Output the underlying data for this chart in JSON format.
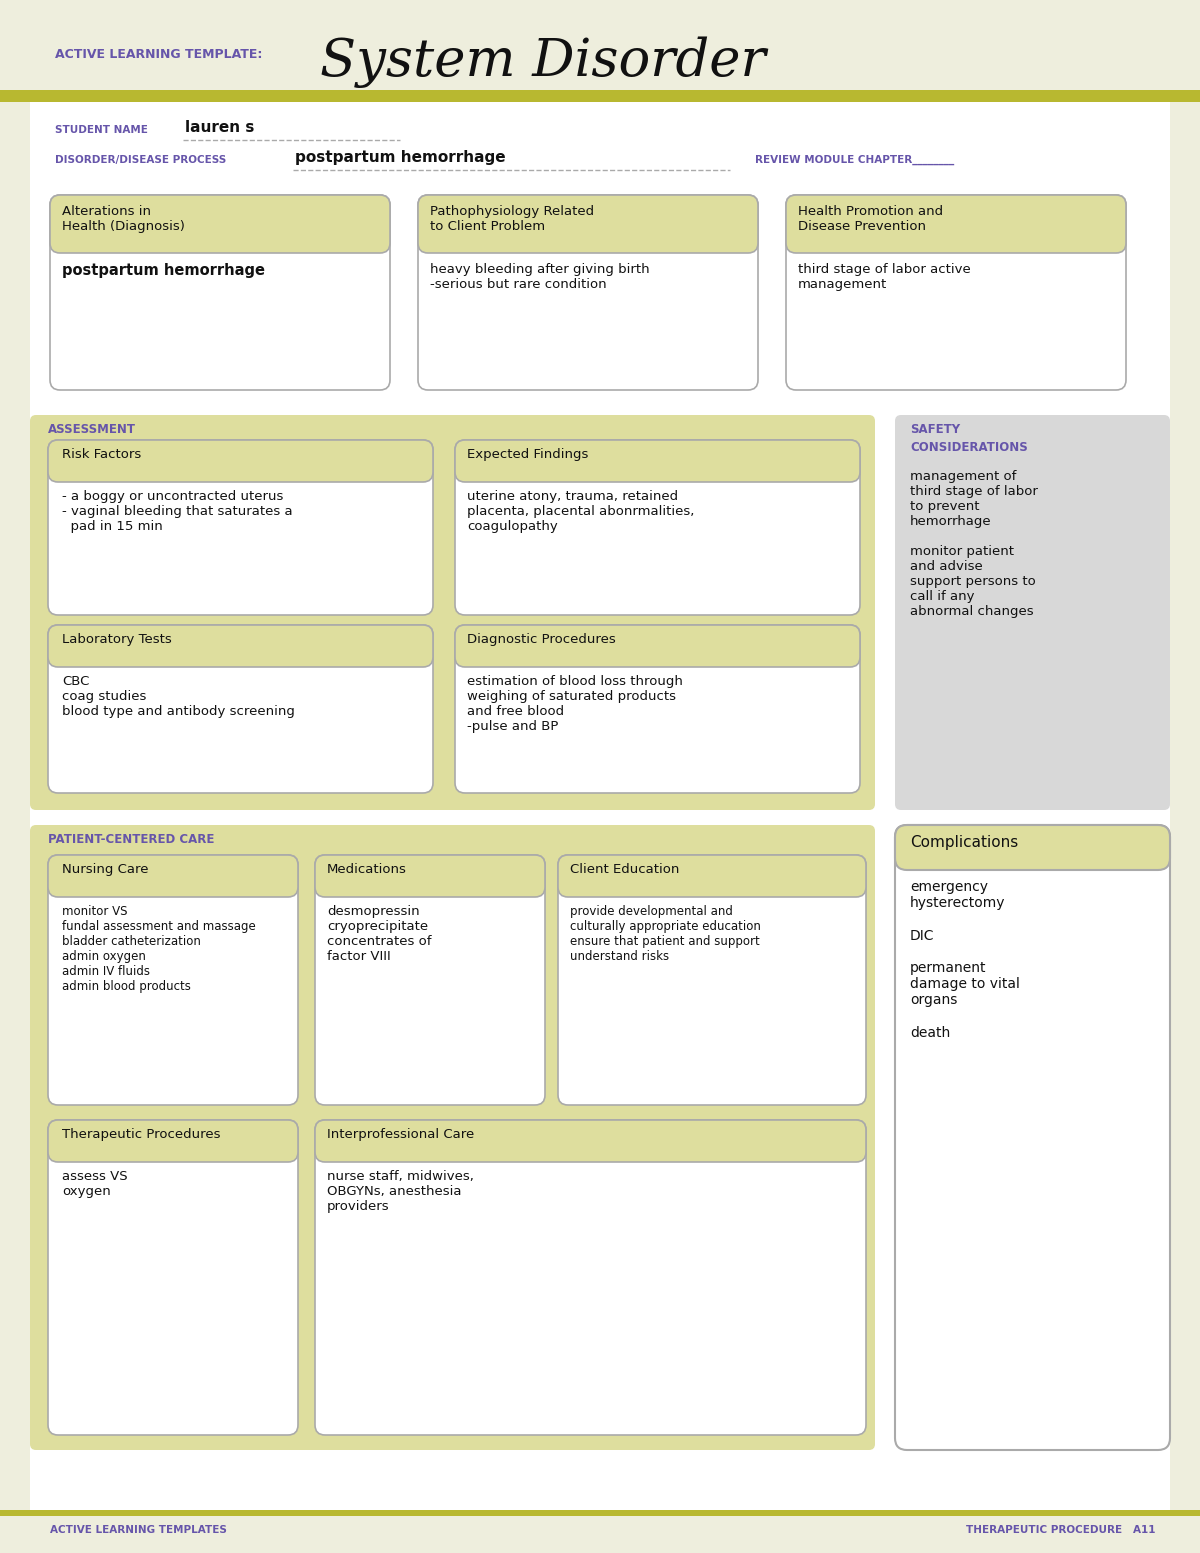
{
  "bg_color": "#eeeedd",
  "white": "#ffffff",
  "header_bg": "#dede9e",
  "section_bg": "#dede9e",
  "safety_bg": "#d8d8d8",
  "border_color": "#aaaaaa",
  "purple_color": "#6655aa",
  "olive_bar": "#b8b830",
  "title_large": "System Disorder",
  "title_small": "ACTIVE LEARNING TEMPLATE:",
  "student_name": "lauren s",
  "disorder": "postpartum hemorrhage",
  "box1_title": "Alterations in\nHealth (Diagnosis)",
  "box1_content": "postpartum hemorrhage",
  "box2_title": "Pathophysiology Related\nto Client Problem",
  "box2_content": "heavy bleeding after giving birth\n-serious but rare condition",
  "box3_title": "Health Promotion and\nDisease Prevention",
  "box3_content": "third stage of labor active\nmanagement",
  "assessment_label": "ASSESSMENT",
  "safety_title1": "SAFETY",
  "safety_title2": "CONSIDERATIONS",
  "risk_title": "Risk Factors",
  "risk_content": "- a boggy or uncontracted uterus\n- vaginal bleeding that saturates a\n  pad in 15 min",
  "expected_title": "Expected Findings",
  "expected_content": "uterine atony, trauma, retained\nplacenta, placental abonrmalities,\ncoagulopathy",
  "safety_content": "management of\nthird stage of labor\nto prevent\nhemorrhage\n\nmonitor patient\nand advise\nsupport persons to\ncall if any\nabnormal changes",
  "lab_title": "Laboratory Tests",
  "lab_content": "CBC\ncoag studies\nblood type and antibody screening",
  "diag_title": "Diagnostic Procedures",
  "diag_content": "estimation of blood loss through\nweighing of saturated products\nand free blood\n-pulse and BP",
  "patient_care_label": "PATIENT-CENTERED CARE",
  "complications_label": "Complications",
  "complications_content": "emergency\nhysterectomy\n\nDIC\n\npermanent\ndamage to vital\norgans\n\ndeath",
  "nursing_title": "Nursing Care",
  "nursing_content": "monitor VS\nfundal assessment and massage\nbladder catheterization\nadmin oxygen\nadmin IV fluids\nadmin blood products",
  "meds_title": "Medications",
  "meds_content": "desmopressin\ncryoprecipitate\nconcentrates of\nfactor VIII",
  "client_ed_title": "Client Education",
  "client_ed_content": "provide developmental and\nculturally appropriate education\nensure that patient and support\nunderstand risks",
  "therapy_title": "Therapeutic Procedures",
  "therapy_content": "assess VS\noxygen",
  "interpro_title": "Interprofessional Care",
  "interpro_content": "nurse staff, midwives,\nOBGYNs, anesthesia\nproviders",
  "footer_left": "ACTIVE LEARNING TEMPLATES",
  "footer_right": "THERAPEUTIC PROCEDURE   A11"
}
